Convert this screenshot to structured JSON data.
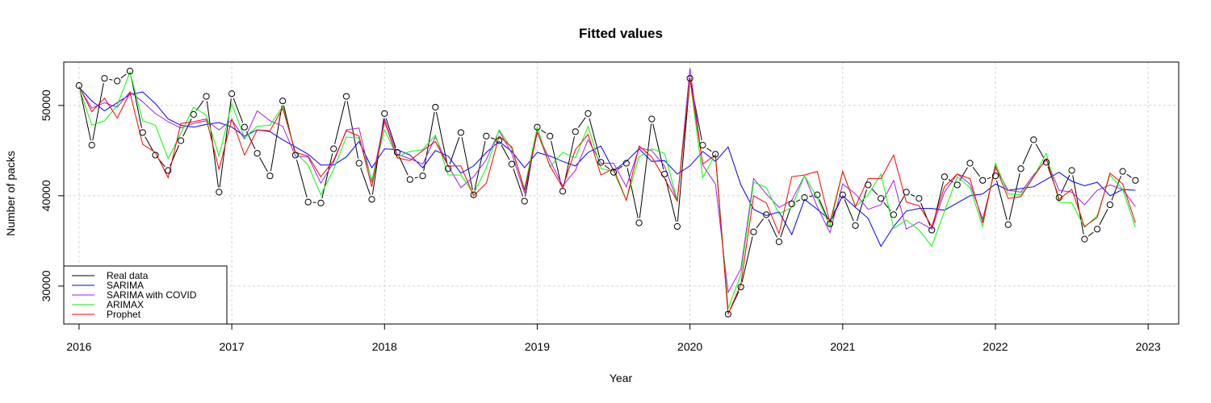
{
  "chart_data": {
    "type": "line",
    "title": "Fitted values",
    "xlabel": "Year",
    "ylabel": "Number of packs",
    "xlim": [
      2015.9,
      2023.2
    ],
    "ylim": [
      25800,
      54800
    ],
    "x_ticks": [
      2016,
      2017,
      2018,
      2019,
      2020,
      2021,
      2022,
      2023
    ],
    "y_ticks": [
      30000,
      40000,
      50000
    ],
    "grid": true,
    "legend_position": "bottom-left",
    "x_start": 2016,
    "x_step_months": 1,
    "series": [
      {
        "name": "Real data",
        "color": "#000000",
        "style": "line-with-circles",
        "values": [
          52200,
          45600,
          53000,
          52700,
          53800,
          47000,
          44500,
          42800,
          46100,
          49000,
          51000,
          40400,
          51300,
          47600,
          44700,
          42200,
          50500,
          44500,
          39300,
          39200,
          45200,
          51000,
          43600,
          39600,
          49100,
          44800,
          41800,
          42200,
          49800,
          43000,
          47000,
          40100,
          46600,
          46100,
          43500,
          39400,
          47600,
          46600,
          40500,
          47100,
          49100,
          43700,
          42600,
          43600,
          37000,
          48500,
          42400,
          36600,
          53000,
          45600,
          44600,
          26900,
          29900,
          36000,
          37900,
          34900,
          39100,
          39800,
          40100,
          36900,
          40100,
          36700,
          41200,
          39700,
          37900,
          40400,
          39700,
          36200,
          42100,
          41200,
          43600,
          41700,
          42200,
          36800,
          43000,
          46200,
          43700,
          39800,
          42800,
          35200,
          36300,
          39000,
          42700,
          41700
        ]
      },
      {
        "name": "SARIMA",
        "color": "#0000ff",
        "values": [
          52000,
          50500,
          49400,
          50300,
          51200,
          51500,
          50200,
          48500,
          47800,
          47600,
          47900,
          48100,
          47600,
          46600,
          47300,
          47100,
          46200,
          45400,
          44600,
          43400,
          43400,
          44300,
          46000,
          43100,
          45200,
          45100,
          44500,
          43100,
          45000,
          44400,
          42500,
          43300,
          44800,
          46000,
          44900,
          43100,
          44800,
          44400,
          43800,
          43300,
          44800,
          45500,
          42800,
          43800,
          45200,
          43800,
          43900,
          42400,
          43300,
          44900,
          43800,
          45400,
          41200,
          38500,
          37800,
          38200,
          35700,
          39600,
          38500,
          37300,
          40000,
          38700,
          37500,
          34400,
          36600,
          38300,
          38600,
          38600,
          38400,
          39200,
          40000,
          40200,
          41300,
          40600,
          40800,
          41000,
          41800,
          42600,
          41600,
          41100,
          41500,
          40000,
          40700,
          40600
        ]
      },
      {
        "name": "SARIMA with COVID",
        "color": "#a020f0",
        "values": [
          52000,
          49700,
          50300,
          49800,
          51500,
          50400,
          49100,
          48200,
          47500,
          48000,
          48300,
          47300,
          48400,
          46300,
          49400,
          48300,
          47700,
          44400,
          44300,
          41400,
          43700,
          47300,
          47500,
          41500,
          48500,
          44600,
          44100,
          43500,
          46500,
          43300,
          40900,
          42100,
          44000,
          47200,
          44700,
          40300,
          47000,
          43900,
          41100,
          42800,
          46200,
          43600,
          43600,
          41000,
          45300,
          45000,
          43300,
          39400,
          54100,
          43400,
          41300,
          29300,
          31900,
          41900,
          40200,
          38700,
          39500,
          42200,
          38800,
          35900,
          41300,
          40200,
          38500,
          39000,
          41700,
          36300,
          37100,
          36300,
          40400,
          42400,
          41300,
          37400,
          43100,
          40600,
          40400,
          42300,
          44000,
          40600,
          40400,
          39000,
          40600,
          41200,
          40700,
          38800
        ]
      },
      {
        "name": "ARIMAX",
        "color": "#00ff00",
        "values": [
          52000,
          47800,
          48300,
          50000,
          53700,
          48300,
          47800,
          44100,
          46900,
          49800,
          48900,
          44400,
          50200,
          46400,
          47700,
          47800,
          49900,
          44800,
          43400,
          40100,
          42900,
          46500,
          46400,
          41700,
          47300,
          44300,
          44900,
          45100,
          46700,
          42300,
          42300,
          40200,
          43100,
          47300,
          45200,
          40800,
          47600,
          43200,
          44800,
          44200,
          47700,
          43000,
          42700,
          39500,
          44300,
          45200,
          44700,
          39500,
          53000,
          42000,
          44600,
          27500,
          31300,
          41500,
          40900,
          38000,
          38700,
          42200,
          39800,
          36600,
          42700,
          38800,
          40100,
          42400,
          36400,
          37300,
          36200,
          34400,
          38300,
          42100,
          40900,
          36600,
          43600,
          40200,
          40100,
          42100,
          44700,
          39300,
          39200,
          36500,
          37800,
          42300,
          40700,
          36500
        ]
      },
      {
        "name": "Prophet",
        "color": "#ff0000",
        "values": [
          52100,
          49300,
          50800,
          48600,
          51400,
          45700,
          44800,
          42000,
          48000,
          48200,
          48500,
          42900,
          48500,
          44500,
          47300,
          47200,
          49700,
          44800,
          44400,
          42100,
          43900,
          47200,
          46600,
          41000,
          48200,
          44200,
          43900,
          45000,
          46000,
          43300,
          43300,
          40000,
          41400,
          46600,
          45400,
          40600,
          47100,
          43300,
          40900,
          45100,
          46800,
          42300,
          43000,
          39500,
          45500,
          44300,
          41900,
          39400,
          53000,
          43500,
          44500,
          26900,
          30200,
          40000,
          39200,
          35800,
          42100,
          42300,
          42700,
          37000,
          42700,
          38800,
          41900,
          41900,
          44500,
          39300,
          38900,
          36600,
          41000,
          42400,
          41900,
          37000,
          43300,
          39700,
          39900,
          42100,
          44100,
          39600,
          40700,
          36600,
          37600,
          42500,
          41300,
          37000
        ]
      }
    ]
  }
}
